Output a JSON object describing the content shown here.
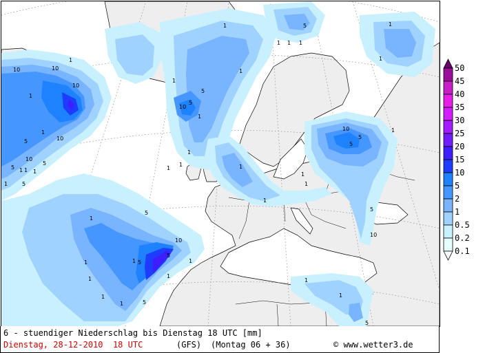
{
  "map": {
    "colors": {
      "land": "#f0f0f0",
      "sea": "#ffffff",
      "coast": "#000000",
      "grid": "#9a9a9a"
    },
    "contour_labels": [
      "1",
      "5",
      "10"
    ]
  },
  "legend": {
    "levels": [
      {
        "label": "50",
        "color": "#6a006a"
      },
      {
        "label": "45",
        "color": "#9a0e9a"
      },
      {
        "label": "40",
        "color": "#c81ec8"
      },
      {
        "label": "35",
        "color": "#e61ee6"
      },
      {
        "label": "30",
        "color": "#d21eff"
      },
      {
        "label": "25",
        "color": "#a01eff"
      },
      {
        "label": "20",
        "color": "#6e1eff"
      },
      {
        "label": "15",
        "color": "#3c1eff"
      },
      {
        "label": "10",
        "color": "#1e3cff"
      },
      {
        "label": "5",
        "color": "#1e82ff"
      },
      {
        "label": "2",
        "color": "#4696ff"
      },
      {
        "label": "1",
        "color": "#78b4ff"
      },
      {
        "label": "0.5",
        "color": "#a0d2ff"
      },
      {
        "label": "0.2",
        "color": "#c8f0ff"
      },
      {
        "label": "0.1",
        "color": "#e6ffff"
      }
    ]
  },
  "footer": {
    "title": "6 - stuendiger Niederschlag bis Dienstag 18 UTC [mm]",
    "date": "Dienstag, 28-12-2010  18 UTC",
    "model": "(GFS)",
    "run": "(Montag 06 + 36)",
    "copyright": "© www.wetter3.de"
  }
}
